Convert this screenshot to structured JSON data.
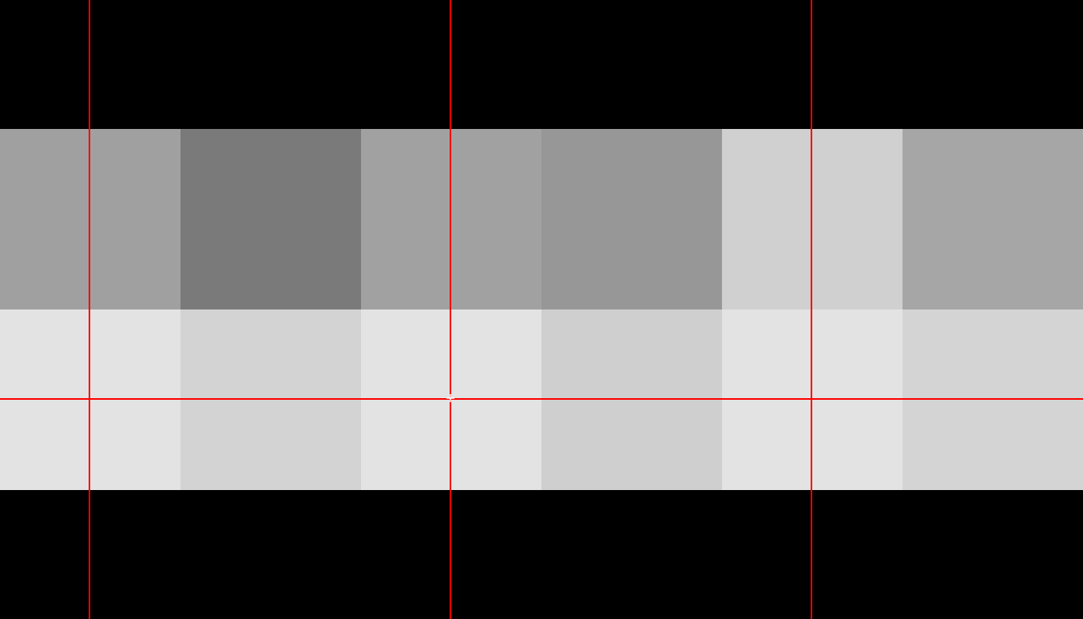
{
  "colors": {
    "background": "#000000",
    "guide": "#ff0000",
    "cursor": "#ffffff"
  },
  "grid": {
    "rows": [
      [
        "#a0a0a0",
        "#7a7a7a",
        "#a1a1a1",
        "#979797",
        "#d0d0d0",
        "#a6a6a6"
      ],
      [
        "#e3e3e3",
        "#d3d3d3",
        "#e3e3e3",
        "#cfcfcf",
        "#e3e3e3",
        "#d4d4d4"
      ]
    ]
  },
  "cursor": {
    "icon": "crosshair-cursor-icon"
  }
}
